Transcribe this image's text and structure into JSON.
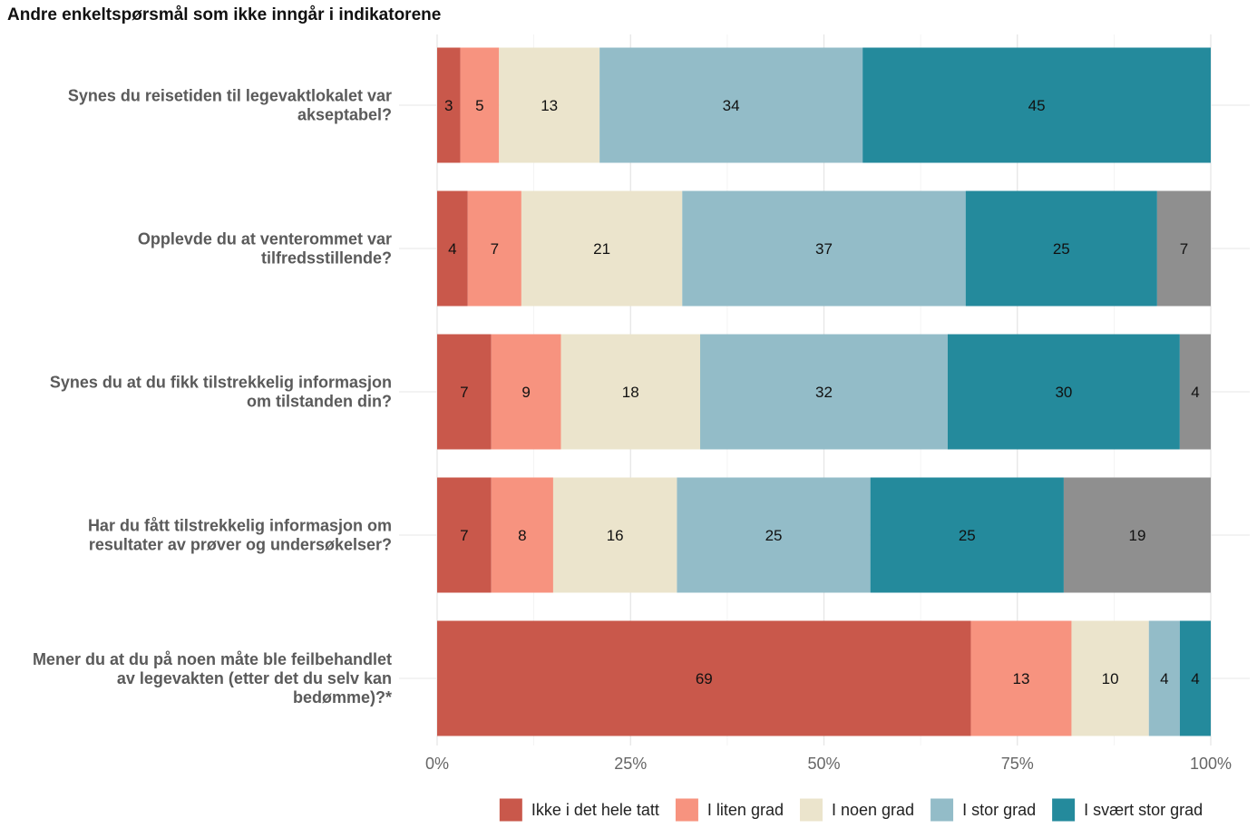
{
  "chart_data": {
    "type": "bar",
    "orientation": "horizontal-stacked-percent",
    "title": "Andre enkeltspørsmål som ikke inngår i indikatorene",
    "categories": [
      [
        "Synes du reisetiden til legevaktlokalet var",
        "akseptabel?"
      ],
      [
        "Opplevde du at venterommet var",
        "tilfredsstillende?"
      ],
      [
        "Synes du at du fikk tilstrekkelig informasjon",
        "om tilstanden din?"
      ],
      [
        "Har du fått tilstrekkelig informasjon om",
        "resultater av prøver og undersøkelser?"
      ],
      [
        "Mener du at du på noen måte ble feilbehandlet",
        "av legevakten (etter det du selv kan",
        "bedømme)?*"
      ]
    ],
    "series": [
      {
        "name": "Ikke i det hele tatt",
        "color": "#c9584b",
        "values": [
          3,
          4,
          7,
          7,
          69
        ]
      },
      {
        "name": "I liten grad",
        "color": "#f7937f",
        "values": [
          5,
          7,
          9,
          8,
          13
        ]
      },
      {
        "name": "I noen grad",
        "color": "#ebe4cc",
        "values": [
          13,
          21,
          18,
          16,
          10
        ]
      },
      {
        "name": "I stor grad",
        "color": "#93bcc8",
        "values": [
          34,
          37,
          32,
          25,
          4
        ]
      },
      {
        "name": "I svært stor grad",
        "color": "#248a9c",
        "values": [
          45,
          25,
          30,
          25,
          4
        ]
      },
      {
        "name": "",
        "color": "#8f8f8f",
        "values": [
          0,
          7,
          4,
          19,
          0
        ]
      }
    ],
    "xlim": [
      0,
      100
    ],
    "xticks": [
      0,
      25,
      50,
      75,
      100
    ],
    "xtick_labels": [
      "0%",
      "25%",
      "50%",
      "75%",
      "100%"
    ],
    "grid": true,
    "legend_position": "bottom"
  }
}
